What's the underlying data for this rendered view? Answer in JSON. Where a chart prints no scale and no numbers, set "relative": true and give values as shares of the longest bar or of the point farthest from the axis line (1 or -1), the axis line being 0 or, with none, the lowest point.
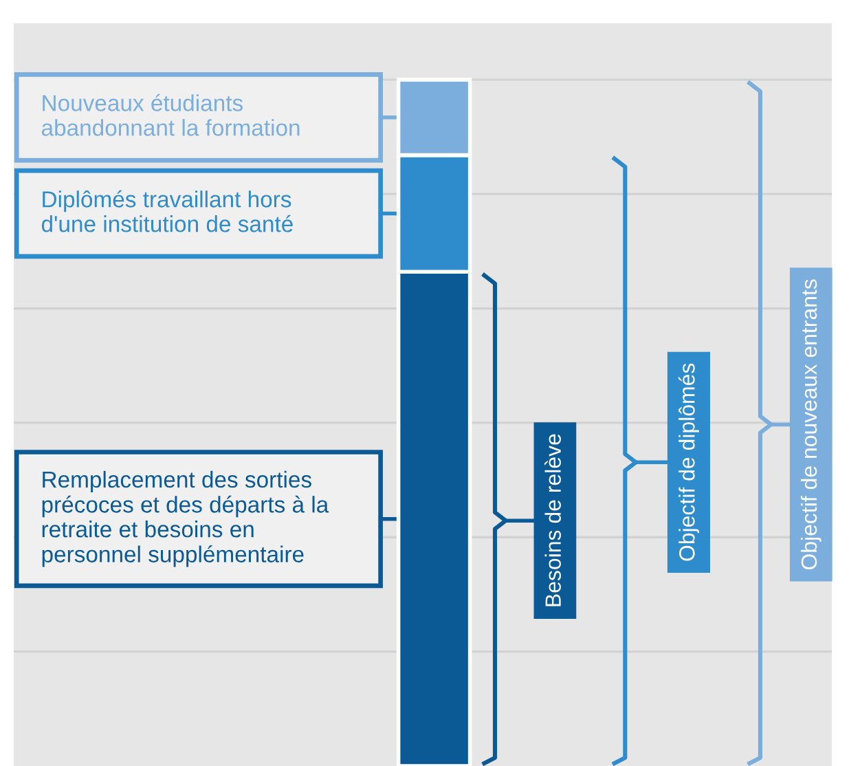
{
  "chart_data": {
    "type": "bar",
    "stacked": true,
    "relative": true,
    "grid": "y",
    "categories": [
      null
    ],
    "series": [
      {
        "name": "Remplacement des sorties précoces et des départs à la retraite et besoins en personnel supplémentaire",
        "color": "#0b5a96",
        "values": [
          0.72
        ]
      },
      {
        "name": "Diplômés travaillant hors d'une institution de santé",
        "color": "#2e8bcc",
        "values": [
          0.17
        ]
      },
      {
        "name": "Nouveaux étudiants abandonnant la formation",
        "color": "#7baedc",
        "values": [
          0.11
        ]
      }
    ],
    "annotations": [
      "Besoins de relève",
      "Objectif de diplômés",
      "Objectif de nouveaux entrants"
    ]
  }
}
